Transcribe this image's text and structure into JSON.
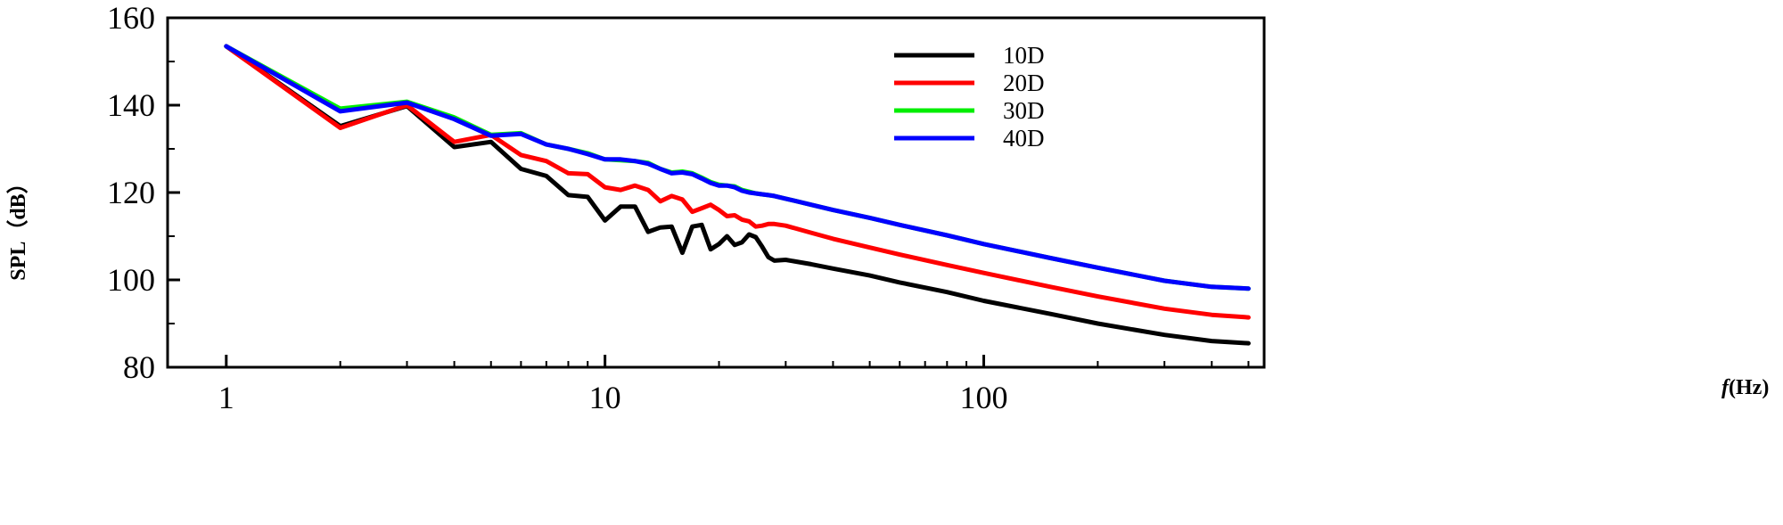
{
  "chart_data": {
    "type": "line",
    "title": "",
    "xlabel_italic": "f",
    "xlabel_rest": "(Hz)",
    "ylabel": "SPL（dB）",
    "xscale": "log",
    "xlim": [
      0.7,
      550
    ],
    "ylim": [
      80,
      160
    ],
    "xticks": [
      1,
      10,
      100
    ],
    "xtick_labels": [
      "1",
      "10",
      "100"
    ],
    "yticks": [
      80,
      100,
      120,
      140,
      160
    ],
    "ytick_labels": [
      "80",
      "100",
      "120",
      "140",
      "160"
    ],
    "grid": false,
    "legend_position": "top-right",
    "series": [
      {
        "name": "10D",
        "color": "#000000",
        "x": [
          1,
          2,
          3,
          4,
          5,
          6,
          7,
          8,
          9,
          10,
          11,
          12,
          13,
          14,
          15,
          16,
          17,
          18,
          19,
          20,
          21,
          22,
          23,
          24,
          25,
          26,
          27,
          28,
          30,
          35,
          40,
          50,
          60,
          80,
          100,
          150,
          200,
          300,
          400,
          500
        ],
        "y": [
          153.5,
          135.2,
          139.8,
          130.4,
          131.6,
          125.4,
          123.8,
          119.4,
          119.0,
          113.6,
          116.8,
          116.8,
          111.0,
          112.0,
          112.2,
          106.2,
          112.2,
          112.6,
          107.0,
          108.2,
          110.0,
          108.0,
          108.6,
          110.4,
          109.8,
          107.6,
          105.2,
          104.4,
          104.6,
          103.6,
          102.6,
          101.0,
          99.4,
          97.2,
          95.2,
          92.2,
          90.0,
          87.4,
          86.0,
          85.5
        ]
      },
      {
        "name": "20D",
        "color": "#ff0000",
        "x": [
          1,
          2,
          3,
          4,
          5,
          6,
          7,
          8,
          9,
          10,
          11,
          12,
          13,
          14,
          15,
          16,
          17,
          18,
          19,
          20,
          21,
          22,
          23,
          24,
          25,
          26,
          27,
          28,
          30,
          35,
          40,
          50,
          60,
          80,
          100,
          150,
          200,
          300,
          400,
          500
        ],
        "y": [
          153.5,
          134.8,
          140.0,
          131.6,
          133.2,
          128.6,
          127.2,
          124.4,
          124.2,
          121.2,
          120.6,
          121.6,
          120.6,
          118.0,
          119.2,
          118.4,
          115.6,
          116.4,
          117.2,
          116.0,
          114.6,
          114.8,
          113.8,
          113.4,
          112.2,
          112.4,
          112.8,
          112.8,
          112.4,
          110.8,
          109.4,
          107.4,
          105.8,
          103.4,
          101.6,
          98.4,
          96.2,
          93.4,
          92.0,
          91.4
        ]
      },
      {
        "name": "30D",
        "color": "#00ee00",
        "x": [
          1,
          2,
          3,
          4,
          5,
          6,
          7,
          8,
          9,
          10,
          11,
          12,
          13,
          14,
          15,
          16,
          17,
          18,
          19,
          20,
          21,
          22,
          23,
          24,
          25,
          26,
          27,
          28,
          30,
          35,
          40,
          50,
          60,
          80,
          100,
          150,
          200,
          300,
          400,
          500
        ],
        "y": [
          153.5,
          139.2,
          140.8,
          137.2,
          133.2,
          133.6,
          131.0,
          130.0,
          129.0,
          127.6,
          127.4,
          127.2,
          126.8,
          125.4,
          124.6,
          124.8,
          124.4,
          123.4,
          122.4,
          121.8,
          121.6,
          121.4,
          120.6,
          120.2,
          119.8,
          119.6,
          119.4,
          119.2,
          118.6,
          117.2,
          116.0,
          114.2,
          112.6,
          110.2,
          108.2,
          105.0,
          102.8,
          99.8,
          98.4,
          98.0
        ]
      },
      {
        "name": "40D",
        "color": "#0000ff",
        "x": [
          1,
          2,
          3,
          4,
          5,
          6,
          7,
          8,
          9,
          10,
          11,
          12,
          13,
          14,
          15,
          16,
          17,
          18,
          19,
          20,
          21,
          22,
          23,
          24,
          25,
          26,
          27,
          28,
          30,
          35,
          40,
          50,
          60,
          80,
          100,
          150,
          200,
          300,
          400,
          500
        ],
        "y": [
          153.5,
          138.6,
          140.6,
          136.8,
          133.0,
          133.4,
          131.0,
          130.0,
          128.8,
          127.6,
          127.6,
          127.2,
          126.6,
          125.4,
          124.4,
          124.6,
          124.2,
          123.2,
          122.2,
          121.6,
          121.6,
          121.2,
          120.4,
          120.0,
          119.8,
          119.6,
          119.4,
          119.2,
          118.6,
          117.2,
          116.0,
          114.2,
          112.6,
          110.2,
          108.2,
          105.0,
          102.8,
          99.8,
          98.4,
          98.0
        ]
      }
    ]
  }
}
